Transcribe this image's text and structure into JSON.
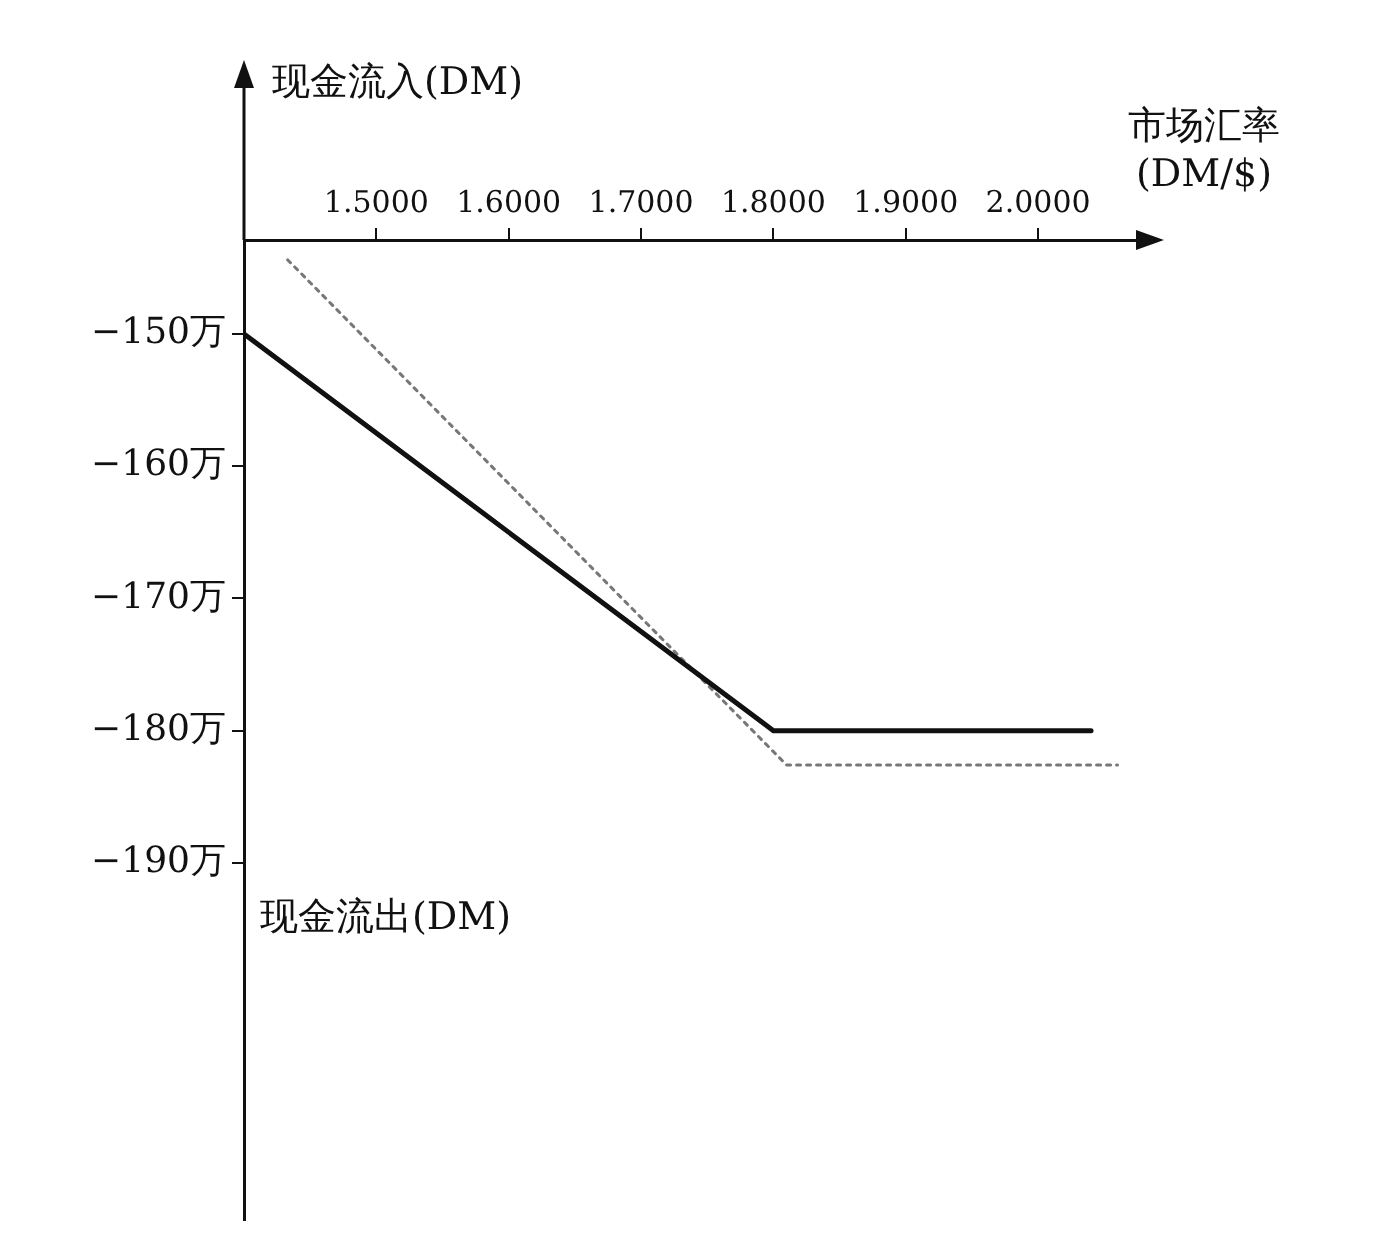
{
  "chart_data": {
    "type": "line",
    "ylabel": "现金流入(DM)",
    "xlabel": "市场汇率\n(DM/$)",
    "annotations": [
      "现金流出(DM)"
    ],
    "xlim": [
      1.4,
      2.08
    ],
    "ylim": [
      -217,
      -142.9
    ],
    "xticks": [
      {
        "value": 1.5,
        "label": "1.5000"
      },
      {
        "value": 1.6,
        "label": "1.6000"
      },
      {
        "value": 1.7,
        "label": "1.7000"
      },
      {
        "value": 1.8,
        "label": "1.8000"
      },
      {
        "value": 1.9,
        "label": "1.9000"
      },
      {
        "value": 2.0,
        "label": "2.0000"
      }
    ],
    "yticks": [
      {
        "value": -150,
        "label": "−150万"
      },
      {
        "value": -160,
        "label": "−160万"
      },
      {
        "value": -170,
        "label": "−170万"
      },
      {
        "value": -180,
        "label": "−180万"
      },
      {
        "value": -190,
        "label": "−190万"
      }
    ],
    "series": [
      {
        "color": "#111111",
        "x": [
          1.4,
          1.8,
          2.04
        ],
        "values": [
          -150,
          -180,
          -180
        ],
        "line_style": "solid"
      },
      {
        "color": "#777777",
        "x": [
          1.433,
          1.81,
          2.06
        ],
        "values": [
          -144.4,
          -182.6,
          -182.6
        ],
        "line_style": "dotted"
      }
    ],
    "grid": false,
    "legend": false,
    "marker": "none"
  }
}
